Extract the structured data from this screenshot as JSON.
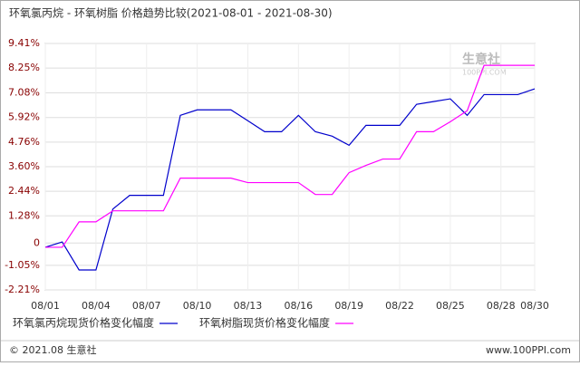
{
  "chart_data": {
    "type": "line",
    "title": "环氧氯丙烷 - 环氧树脂 价格趋势比较(2021-08-01 - 2021-08-30)",
    "categories": [
      "08/01",
      null,
      null,
      "08/04",
      null,
      null,
      "08/07",
      null,
      null,
      "08/10",
      null,
      null,
      "08/13",
      null,
      null,
      "08/16",
      null,
      null,
      "08/19",
      null,
      null,
      "08/22",
      null,
      null,
      "08/25",
      null,
      null,
      "08/28",
      null,
      "08/30"
    ],
    "series": [
      {
        "name": "环氧氯丙烷现货价格变化幅度",
        "color": "#0000cc",
        "values": [
          -0.2,
          0.05,
          -1.27,
          -1.27,
          1.6,
          2.25,
          2.25,
          2.25,
          6.02,
          6.28,
          6.28,
          6.28,
          5.77,
          5.25,
          5.25,
          6.02,
          5.25,
          5.04,
          4.61,
          5.55,
          5.55,
          5.55,
          6.54,
          6.67,
          6.8,
          6.02,
          7.0,
          7.0,
          7.0,
          7.27
        ]
      },
      {
        "name": "环氧树脂现货价格变化幅度",
        "color": "#ff00ff",
        "values": [
          -0.2,
          -0.2,
          1.0,
          1.0,
          1.52,
          1.52,
          1.52,
          1.52,
          3.06,
          3.06,
          3.06,
          3.06,
          2.85,
          2.85,
          2.85,
          2.85,
          2.29,
          2.29,
          3.32,
          3.66,
          3.96,
          3.96,
          5.25,
          5.25,
          5.72,
          6.24,
          8.38,
          8.38,
          8.38,
          8.38
        ]
      }
    ],
    "ylim": [
      -2.21,
      9.41
    ],
    "yticks": [
      {
        "value": 9.41,
        "label": "9.41%"
      },
      {
        "value": 8.25,
        "label": "8.25%"
      },
      {
        "value": 7.08,
        "label": "7.08%"
      },
      {
        "value": 5.92,
        "label": "5.92%"
      },
      {
        "value": 4.76,
        "label": "4.76%"
      },
      {
        "value": 3.6,
        "label": "3.60%"
      },
      {
        "value": 2.44,
        "label": "2.44%"
      },
      {
        "value": 1.28,
        "label": "1.28%"
      },
      0,
      {
        "value": -1.05,
        "label": "-1.05%"
      },
      {
        "value": -2.21,
        "label": "-2.21%"
      }
    ],
    "grid": true,
    "watermark": "生意社",
    "watermark_url": "100PPI.COM",
    "footer_left": "© 2021.08 生意社",
    "footer_right": "www.100PPI.com"
  }
}
